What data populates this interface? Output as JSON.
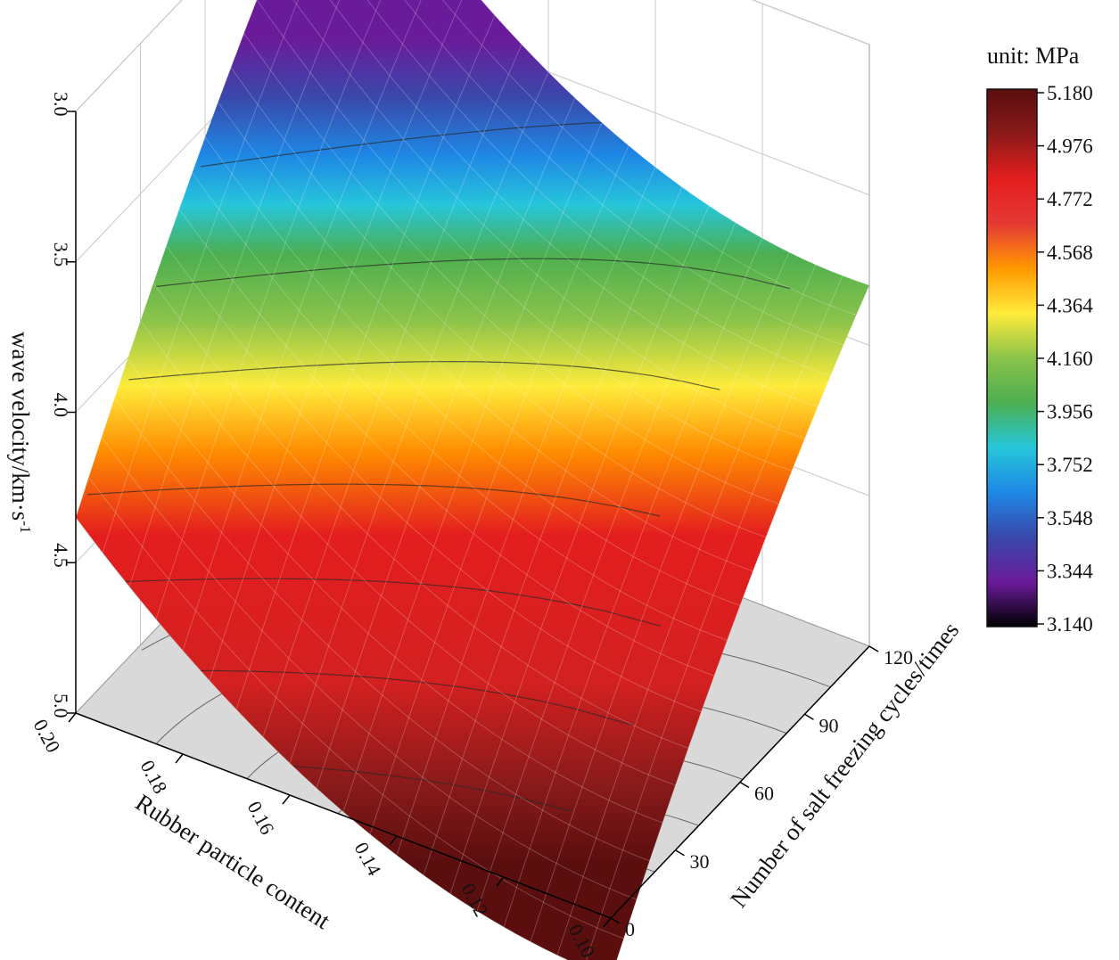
{
  "chart_data": {
    "type": "surface3d",
    "title": "",
    "x_axis": {
      "label": "Rubber particle content",
      "range": [
        0.1,
        0.2
      ],
      "ticks": [
        "0.10",
        "0.12",
        "0.14",
        "0.16",
        "0.18",
        "0.20"
      ]
    },
    "y_axis": {
      "label": "Number of salt freezing cycles/times",
      "range": [
        0,
        120
      ],
      "ticks": [
        "0",
        "30",
        "60",
        "90",
        "120"
      ]
    },
    "z_axis": {
      "label": "wave velocity/km·s",
      "label_sup": "-1",
      "range": [
        5.0,
        3.0
      ],
      "inverted": true,
      "ticks": [
        "5.0",
        "4.5",
        "4.0",
        "3.5",
        "3.0"
      ]
    },
    "colorbar": {
      "title": "unit: MPa",
      "range": [
        3.14,
        5.18
      ],
      "ticks": [
        "5.180",
        "4.976",
        "4.772",
        "4.568",
        "4.364",
        "4.160",
        "3.956",
        "3.752",
        "3.548",
        "3.344",
        "3.140"
      ],
      "stops": [
        "#000000",
        "#6a1b9a",
        "#3949ab",
        "#1e88e5",
        "#26c6da",
        "#4caf50",
        "#8bc34a",
        "#ffeb3b",
        "#ff9800",
        "#e53935",
        "#e41e1e",
        "#8b1a1a",
        "#5a0e0e"
      ]
    },
    "surface_corners": [
      {
        "x": 0.1,
        "y": 0,
        "z": 5.2,
        "note": "front corner"
      },
      {
        "x": 0.2,
        "y": 0,
        "z": 4.35,
        "note": "left corner"
      },
      {
        "x": 0.1,
        "y": 120,
        "z": 3.8,
        "note": "right corner"
      },
      {
        "x": 0.2,
        "y": 120,
        "z": 2.9,
        "note": "back corner"
      }
    ],
    "grid": true
  }
}
